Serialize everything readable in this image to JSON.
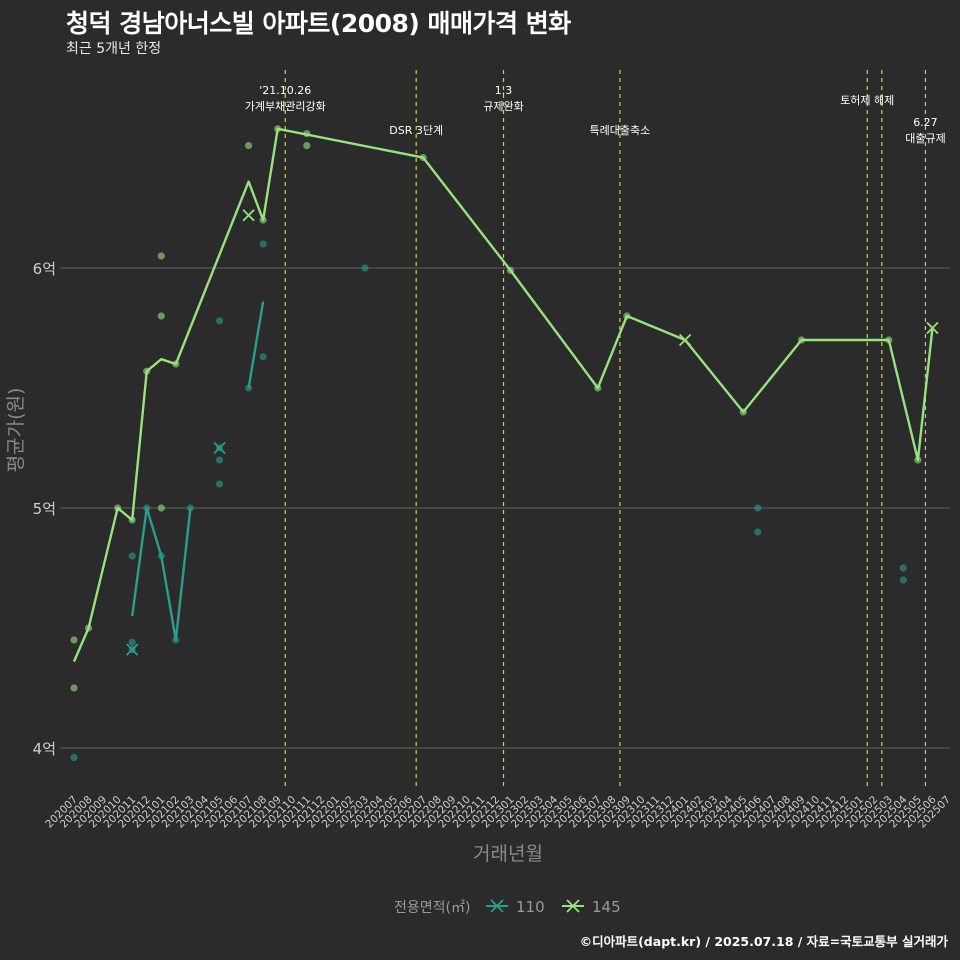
{
  "chart_data": {
    "type": "line",
    "title": "청덕 경남아너스빌 아파트(2008) 매매가격 변화",
    "subtitle": "최근 5개년 한정",
    "xlabel": "거래년월",
    "ylabel": "평균가(원)",
    "caption": "©디아파트(dapt.kr) / 2025.07.18 / 자료=국토교통부 실거래가",
    "legend_title": "전용면적(㎡)",
    "legend_position": "bottom",
    "grid": true,
    "ylim": [
      3.85,
      6.95
    ],
    "yticks": [
      4,
      5,
      6
    ],
    "ytick_labels": [
      "4억",
      "5억",
      "6억"
    ],
    "x_start": "2020-07",
    "x_categories": [
      "202007",
      "202008",
      "202009",
      "202010",
      "202011",
      "202012",
      "202101",
      "202102",
      "202103",
      "202104",
      "202105",
      "202106",
      "202107",
      "202108",
      "202109",
      "202110",
      "202111",
      "202112",
      "202201",
      "202202",
      "202203",
      "202204",
      "202205",
      "202206",
      "202207",
      "202208",
      "202209",
      "202210",
      "202211",
      "202212",
      "202301",
      "202302",
      "202303",
      "202304",
      "202305",
      "202306",
      "202307",
      "202308",
      "202309",
      "202310",
      "202311",
      "202312",
      "202401",
      "202402",
      "202403",
      "202404",
      "202405",
      "202406",
      "202407",
      "202408",
      "202409",
      "202410",
      "202411",
      "202412",
      "202501",
      "202502",
      "202503",
      "202504",
      "202505",
      "202506",
      "202507"
    ],
    "series": [
      {
        "name": "110",
        "color": "#2a9d8f",
        "line": [
          [
            "202011",
            4.55
          ],
          [
            "202012",
            5.0
          ],
          [
            "202101",
            4.8
          ],
          [
            "202102",
            4.45
          ],
          [
            "202103",
            5.0
          ],
          null,
          [
            "202107",
            5.5
          ],
          [
            "202108",
            5.86
          ]
        ],
        "points": [
          [
            "202007",
            3.96
          ],
          [
            "202011",
            4.8
          ],
          [
            "202011",
            4.44
          ],
          [
            "202011",
            4.41
          ],
          [
            "202012",
            5.0
          ],
          [
            "202101",
            4.8
          ],
          [
            "202102",
            4.45
          ],
          [
            "202103",
            5.0
          ],
          [
            "202105",
            5.25
          ],
          [
            "202105",
            5.2
          ],
          [
            "202105",
            5.1
          ],
          [
            "202105",
            5.78
          ],
          [
            "202107",
            5.5
          ],
          [
            "202108",
            6.1
          ],
          [
            "202108",
            5.63
          ],
          [
            "202203",
            6.0
          ],
          [
            "202406",
            5.0
          ],
          [
            "202406",
            4.9
          ],
          [
            "202504",
            4.75
          ],
          [
            "202504",
            4.7
          ]
        ],
        "crosses": [
          [
            "202011",
            4.41
          ],
          [
            "202105",
            5.25
          ]
        ]
      },
      {
        "name": "145",
        "color": "#98e27f",
        "line": [
          [
            "202007",
            4.36
          ],
          [
            "202008",
            4.5
          ],
          [
            "202010",
            5.0
          ],
          [
            "202011",
            4.95
          ],
          [
            "202012",
            5.57
          ],
          [
            "202101",
            5.62
          ],
          [
            "202102",
            5.6
          ],
          [
            "202107",
            6.36
          ],
          [
            "202108",
            6.2
          ],
          [
            "202109",
            6.58
          ],
          [
            "202207",
            6.46
          ],
          [
            "202301",
            5.99
          ],
          [
            "202307",
            5.5
          ],
          [
            "202309",
            5.8
          ],
          [
            "202401",
            5.7
          ],
          [
            "202405",
            5.4
          ],
          [
            "202409",
            5.7
          ],
          [
            "202503",
            5.7
          ],
          [
            "202505",
            5.2
          ],
          [
            "202506",
            5.75
          ]
        ],
        "points": [
          [
            "202007",
            4.45
          ],
          [
            "202007",
            4.25
          ],
          [
            "202008",
            4.5
          ],
          [
            "202010",
            5.0
          ],
          [
            "202011",
            4.95
          ],
          [
            "202012",
            5.57
          ],
          [
            "202101",
            6.05
          ],
          [
            "202101",
            5.8
          ],
          [
            "202101",
            5.0
          ],
          [
            "202102",
            5.6
          ],
          [
            "202107",
            6.51
          ],
          [
            "202108",
            6.2
          ],
          [
            "202109",
            6.58
          ],
          [
            "202111",
            6.56
          ],
          [
            "202111",
            6.51
          ],
          [
            "202207",
            6.46
          ],
          [
            "202301",
            5.99
          ],
          [
            "202307",
            5.5
          ],
          [
            "202309",
            5.8
          ],
          [
            "202405",
            5.4
          ],
          [
            "202409",
            5.7
          ],
          [
            "202503",
            5.7
          ],
          [
            "202505",
            5.2
          ]
        ],
        "crosses": [
          [
            "202107",
            6.22
          ],
          [
            "202401",
            5.7
          ],
          [
            "202506",
            5.75
          ]
        ]
      }
    ],
    "events": [
      {
        "x": "202110",
        "label": "'21.10.26\n가계부채관리강화",
        "row": 0
      },
      {
        "x": "202207",
        "label": "DSR 3단계",
        "row": 2
      },
      {
        "x": "202301",
        "label": "1.3\n규제완화",
        "row": 0
      },
      {
        "x": "202309",
        "label": "특례대출축소",
        "row": 2
      },
      {
        "x": "202502",
        "label": "토허제 해제",
        "row": 1
      },
      {
        "x": "202503",
        "label": "",
        "row": 1
      },
      {
        "x": "202506",
        "label": "6.27\n대출규제",
        "row": 3
      }
    ]
  },
  "colors": {
    "background": "#2b2b2b",
    "grid": "#555555",
    "event_line": "#d4d42a"
  }
}
